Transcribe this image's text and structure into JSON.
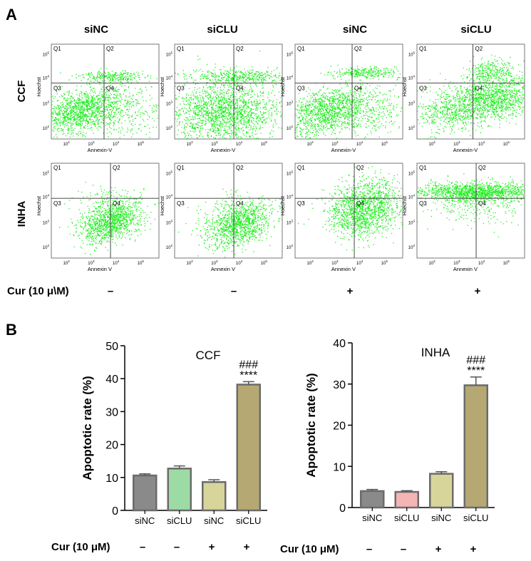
{
  "panel_a": {
    "letter": "A",
    "column_headers": [
      "siNC",
      "siCLU",
      "siNC",
      "siCLU"
    ],
    "row_labels": [
      "CCF",
      "INHA"
    ],
    "quadrant_labels": [
      "Q1",
      "Q2",
      "Q3",
      "Q4"
    ],
    "axis_y": "Hoechst",
    "axis_x_ccf": "Annexin-V",
    "axis_x_inha": "Annexin V",
    "tick_exponents": [
      "2",
      "3",
      "4",
      "5"
    ],
    "tick_base": "10",
    "cur_label": "Cur (10 μ\\M)",
    "cur_marks": [
      "–",
      "–",
      "+",
      "+"
    ],
    "dot_color": "#22ee22"
  },
  "panel_b": {
    "letter": "B",
    "cur_label": "Cur (10 μM)",
    "cur_marks": [
      "–",
      "–",
      "+",
      "+"
    ],
    "significance_hash": "###",
    "significance_star": "****"
  },
  "chart_data": [
    {
      "type": "bar",
      "title": "CCF",
      "ylabel": "Apoptotic rate (%)",
      "xlabel": "",
      "ylim": [
        0,
        50
      ],
      "yticks": [
        0,
        10,
        20,
        30,
        40,
        50
      ],
      "categories": [
        "siNC",
        "siCLU",
        "siNC",
        "siCLU"
      ],
      "values": [
        10.6,
        12.7,
        8.6,
        38.2
      ],
      "errors": [
        0.5,
        0.8,
        0.7,
        0.9
      ],
      "colors": [
        "#8a8a8a",
        "#9cdca4",
        "#d7d59a",
        "#b5a873"
      ],
      "annotations": [
        "",
        "",
        "",
        "****"
      ]
    },
    {
      "type": "bar",
      "title": "INHA",
      "ylabel": "Apoptotic rate (%)",
      "xlabel": "",
      "ylim": [
        0,
        40
      ],
      "yticks": [
        0,
        10,
        20,
        30,
        40
      ],
      "categories": [
        "siNC",
        "siCLU",
        "siNC",
        "siCLU"
      ],
      "values": [
        4.0,
        3.8,
        8.2,
        29.7
      ],
      "errors": [
        0.4,
        0.3,
        0.5,
        2.0
      ],
      "colors": [
        "#8a8a8a",
        "#f5b5b5",
        "#d7d59a",
        "#b5a873"
      ],
      "annotations": [
        "",
        "",
        "",
        "****"
      ]
    }
  ]
}
